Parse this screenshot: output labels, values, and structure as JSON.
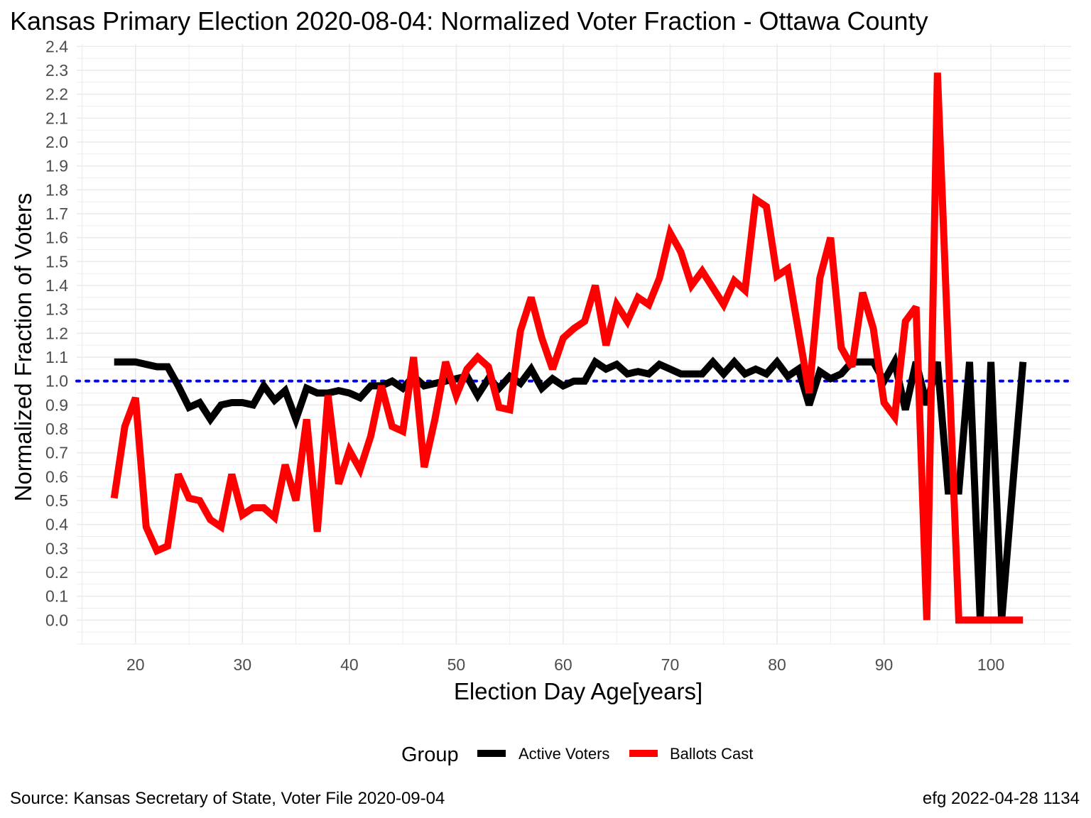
{
  "chart_data": {
    "type": "line",
    "title": "Kansas Primary Election 2020-08-04:  Normalized Voter Fraction - Ottawa County",
    "xlabel": "Election Day Age[years]",
    "ylabel": "Normalized Fraction of Voters",
    "xlim": [
      14.5,
      107.5
    ],
    "ylim": [
      -0.1,
      2.41
    ],
    "xticks": [
      20,
      30,
      40,
      50,
      60,
      70,
      80,
      90,
      100
    ],
    "yticks": [
      0.0,
      0.1,
      0.2,
      0.3,
      0.4,
      0.5,
      0.6,
      0.7,
      0.8,
      0.9,
      1.0,
      1.1,
      1.2,
      1.3,
      1.4,
      1.5,
      1.6,
      1.7,
      1.8,
      1.9,
      2.0,
      2.1,
      2.2,
      2.3,
      2.4
    ],
    "grid": true,
    "reference_line": {
      "y": 1.0,
      "color": "#0000ff",
      "style": "dotted"
    },
    "legend": {
      "title": "Group",
      "position": "bottom"
    },
    "series": [
      {
        "name": "Active Voters",
        "color": "#000000",
        "x": [
          18,
          19,
          20,
          21,
          22,
          23,
          24,
          25,
          26,
          27,
          28,
          29,
          30,
          31,
          32,
          33,
          34,
          35,
          36,
          37,
          38,
          39,
          40,
          41,
          42,
          43,
          44,
          45,
          46,
          47,
          48,
          49,
          50,
          51,
          52,
          53,
          54,
          55,
          56,
          57,
          58,
          59,
          60,
          61,
          62,
          63,
          64,
          65,
          66,
          67,
          68,
          69,
          70,
          71,
          72,
          73,
          74,
          75,
          76,
          77,
          78,
          79,
          80,
          81,
          82,
          83,
          84,
          85,
          86,
          87,
          88,
          89,
          90,
          91,
          92,
          93,
          94,
          95,
          96,
          97,
          98,
          99,
          100,
          101,
          102,
          103
        ],
        "y": [
          1.08,
          1.08,
          1.08,
          1.07,
          1.06,
          1.06,
          0.98,
          0.89,
          0.91,
          0.84,
          0.9,
          0.91,
          0.91,
          0.9,
          0.98,
          0.92,
          0.96,
          0.84,
          0.97,
          0.95,
          0.95,
          0.96,
          0.95,
          0.93,
          0.98,
          0.98,
          1.0,
          0.97,
          1.02,
          0.98,
          0.99,
          1.0,
          1.01,
          1.02,
          0.94,
          1.01,
          0.97,
          1.02,
          0.99,
          1.05,
          0.97,
          1.01,
          0.98,
          1.0,
          1.0,
          1.08,
          1.05,
          1.07,
          1.03,
          1.04,
          1.03,
          1.07,
          1.05,
          1.03,
          1.03,
          1.03,
          1.08,
          1.03,
          1.08,
          1.03,
          1.05,
          1.03,
          1.08,
          1.02,
          1.05,
          0.9,
          1.04,
          1.01,
          1.03,
          1.08,
          1.08,
          1.08,
          1.0,
          1.08,
          0.88,
          1.08,
          0.9,
          1.08,
          0.54,
          0.54,
          1.08,
          0.0,
          1.08,
          0.0,
          0.54,
          1.08
        ]
      },
      {
        "name": "Ballots Cast",
        "color": "#ff0000",
        "x": [
          18,
          19,
          20,
          21,
          22,
          23,
          24,
          25,
          26,
          27,
          28,
          29,
          30,
          31,
          32,
          33,
          34,
          35,
          36,
          37,
          38,
          39,
          40,
          41,
          42,
          43,
          44,
          45,
          46,
          47,
          48,
          49,
          50,
          51,
          52,
          53,
          54,
          55,
          56,
          57,
          58,
          59,
          60,
          61,
          62,
          63,
          64,
          65,
          66,
          67,
          68,
          69,
          70,
          71,
          72,
          73,
          74,
          75,
          76,
          77,
          78,
          79,
          80,
          81,
          82,
          83,
          84,
          85,
          86,
          87,
          88,
          89,
          90,
          91,
          92,
          93,
          94,
          95,
          96,
          97,
          98,
          99,
          100,
          101,
          102,
          103
        ],
        "y": [
          0.51,
          0.81,
          0.93,
          0.39,
          0.29,
          0.31,
          0.61,
          0.51,
          0.5,
          0.42,
          0.39,
          0.61,
          0.44,
          0.47,
          0.47,
          0.43,
          0.65,
          0.5,
          0.84,
          0.37,
          0.94,
          0.57,
          0.71,
          0.63,
          0.77,
          0.98,
          0.81,
          0.79,
          1.1,
          0.64,
          0.84,
          1.08,
          0.94,
          1.05,
          1.1,
          1.06,
          0.89,
          0.88,
          1.21,
          1.35,
          1.18,
          1.05,
          1.18,
          1.22,
          1.25,
          1.4,
          1.15,
          1.32,
          1.25,
          1.35,
          1.32,
          1.43,
          1.62,
          1.54,
          1.4,
          1.46,
          1.39,
          1.32,
          1.42,
          1.38,
          1.76,
          1.73,
          1.44,
          1.47,
          1.21,
          0.95,
          1.43,
          1.6,
          1.14,
          1.06,
          1.37,
          1.22,
          0.91,
          0.85,
          1.25,
          1.31,
          0.0,
          2.29,
          1.14,
          0.0,
          0.0,
          0.0,
          0.0,
          0.0,
          0.0,
          0.0
        ]
      }
    ]
  },
  "caption": {
    "left": "Source:  Kansas Secretary of State, Voter File  2020-09-04",
    "right": "efg 2022-04-28 1134"
  }
}
